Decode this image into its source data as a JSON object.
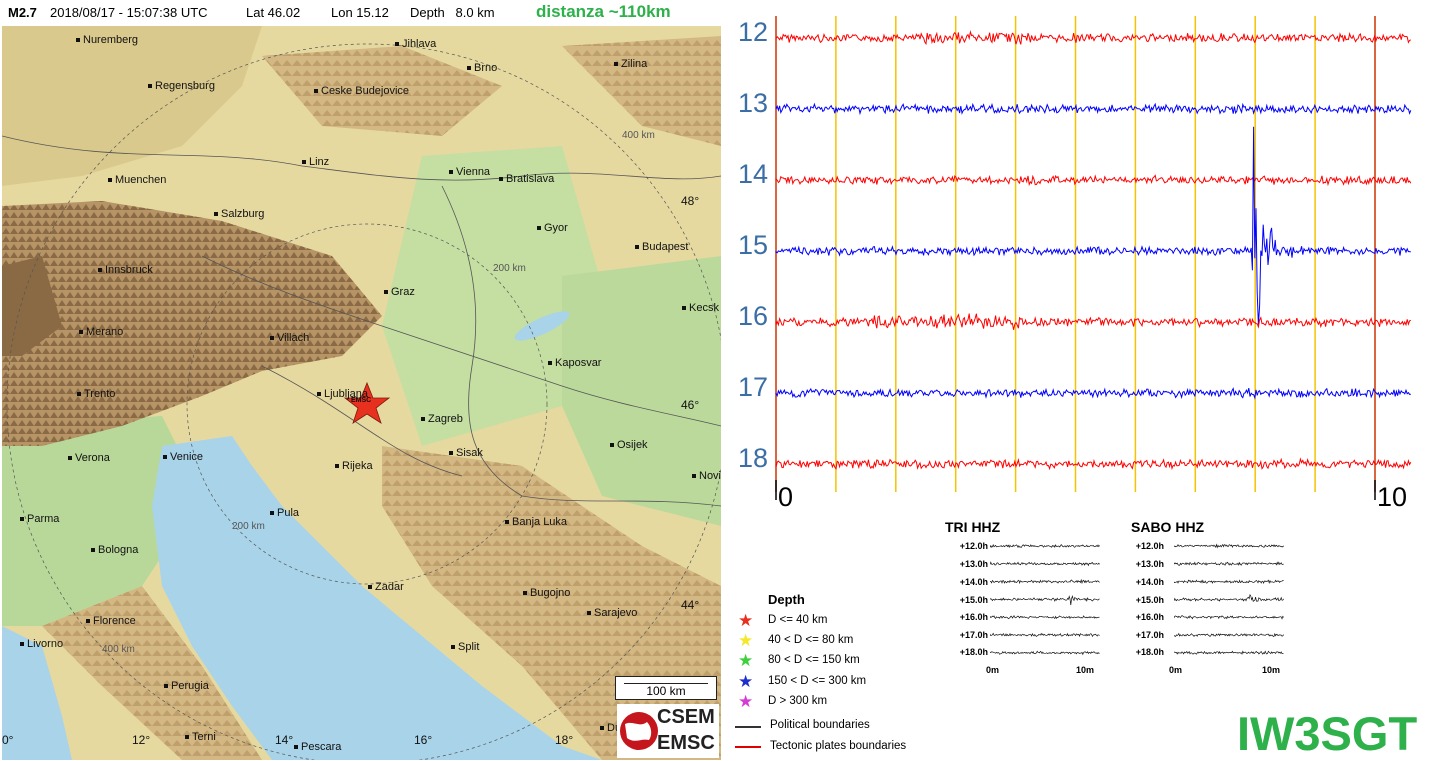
{
  "header": {
    "magnitude": "M2.7",
    "datetime": "2018/08/17 - 15:07:38 UTC",
    "lat": "Lat 46.02",
    "lon": "Lon 15.12",
    "depth": "Depth   8.0 km",
    "distance": "distanza ~110km"
  },
  "map": {
    "cities": [
      "Nuremberg",
      "Jihlava",
      "Brno",
      "Zilina",
      "Regensburg",
      "Ceske Budejovice",
      "Linz",
      "Vienna",
      "Bratislava",
      "Muenchen",
      "Salzburg",
      "Gyor",
      "Budapest",
      "Innsbruck",
      "Graz",
      "Kecsk",
      "Merano",
      "Villach",
      "Kaposvar",
      "Trento",
      "Ljubljana",
      "Zagreb",
      "Osijek",
      "Verona",
      "Venice",
      "Sisak",
      "Rijeka",
      "Novi",
      "Parma",
      "Pula",
      "Banja Luka",
      "Bologna",
      "Zadar",
      "Bugojno",
      "Sarajevo",
      "Florence",
      "Livorno",
      "Split",
      "Perugia",
      "Terni",
      "Pescara",
      "Dubrov"
    ],
    "ring_labels": [
      "400 km",
      "200 km",
      "200 km",
      "400 km"
    ],
    "lat_labels": [
      "48°",
      "46°",
      "44°"
    ],
    "lon_labels": [
      "12°",
      "14°",
      "16°",
      "18°",
      "0°"
    ],
    "epicenter_label": "EMSC",
    "scale_bar": "100 km",
    "logo_top": "CSEM",
    "logo_bottom": "EMSC",
    "colors": {
      "land": "#e9dca1",
      "sea": "#a8d3e9",
      "mountain": "#a07b4f",
      "lowland": "#b5d59b",
      "star": "#e8301e"
    }
  },
  "seismogram": {
    "hours": [
      "12",
      "13",
      "14",
      "15",
      "16",
      "17",
      "18"
    ],
    "axis_start": "0",
    "axis_end": "10",
    "trace_colors": [
      "#ff0000",
      "#0000ff",
      "#ff0000",
      "#0000ff",
      "#ff0000",
      "#0000ff",
      "#ff0000"
    ],
    "minute_line_color": "#f5c400",
    "boundary_line_color": "#cc3300"
  },
  "stations": [
    {
      "name": "TRI HHZ",
      "hours": [
        "+12.0h",
        "+13.0h",
        "+14.0h",
        "+15.0h",
        "+16.0h",
        "+17.0h",
        "+18.0h"
      ],
      "ticks": [
        "0m",
        "10m"
      ]
    },
    {
      "name": "SABO HHZ",
      "hours": [
        "+12.0h",
        "+13.0h",
        "+14.0h",
        "+15.0h",
        "+16.0h",
        "+17.0h",
        "+18.0h"
      ],
      "ticks": [
        "0m",
        "10m"
      ]
    }
  ],
  "legend": {
    "title": "Depth",
    "items": [
      {
        "label": "D <= 40 km",
        "color": "#e8301e"
      },
      {
        "label": "40 < D <= 80 km",
        "color": "#f3e82a"
      },
      {
        "label": "80 < D <= 150 km",
        "color": "#3cd13c"
      },
      {
        "label": "150 < D <= 300 km",
        "color": "#1f2fcf"
      },
      {
        "label": "D > 300 km",
        "color": "#d63bd6"
      }
    ],
    "lines": [
      {
        "label": "Political boundaries",
        "color": "#333333"
      },
      {
        "label": "Tectonic plates boundaries",
        "color": "#e00000"
      }
    ]
  },
  "callsign": "IW3SGT"
}
